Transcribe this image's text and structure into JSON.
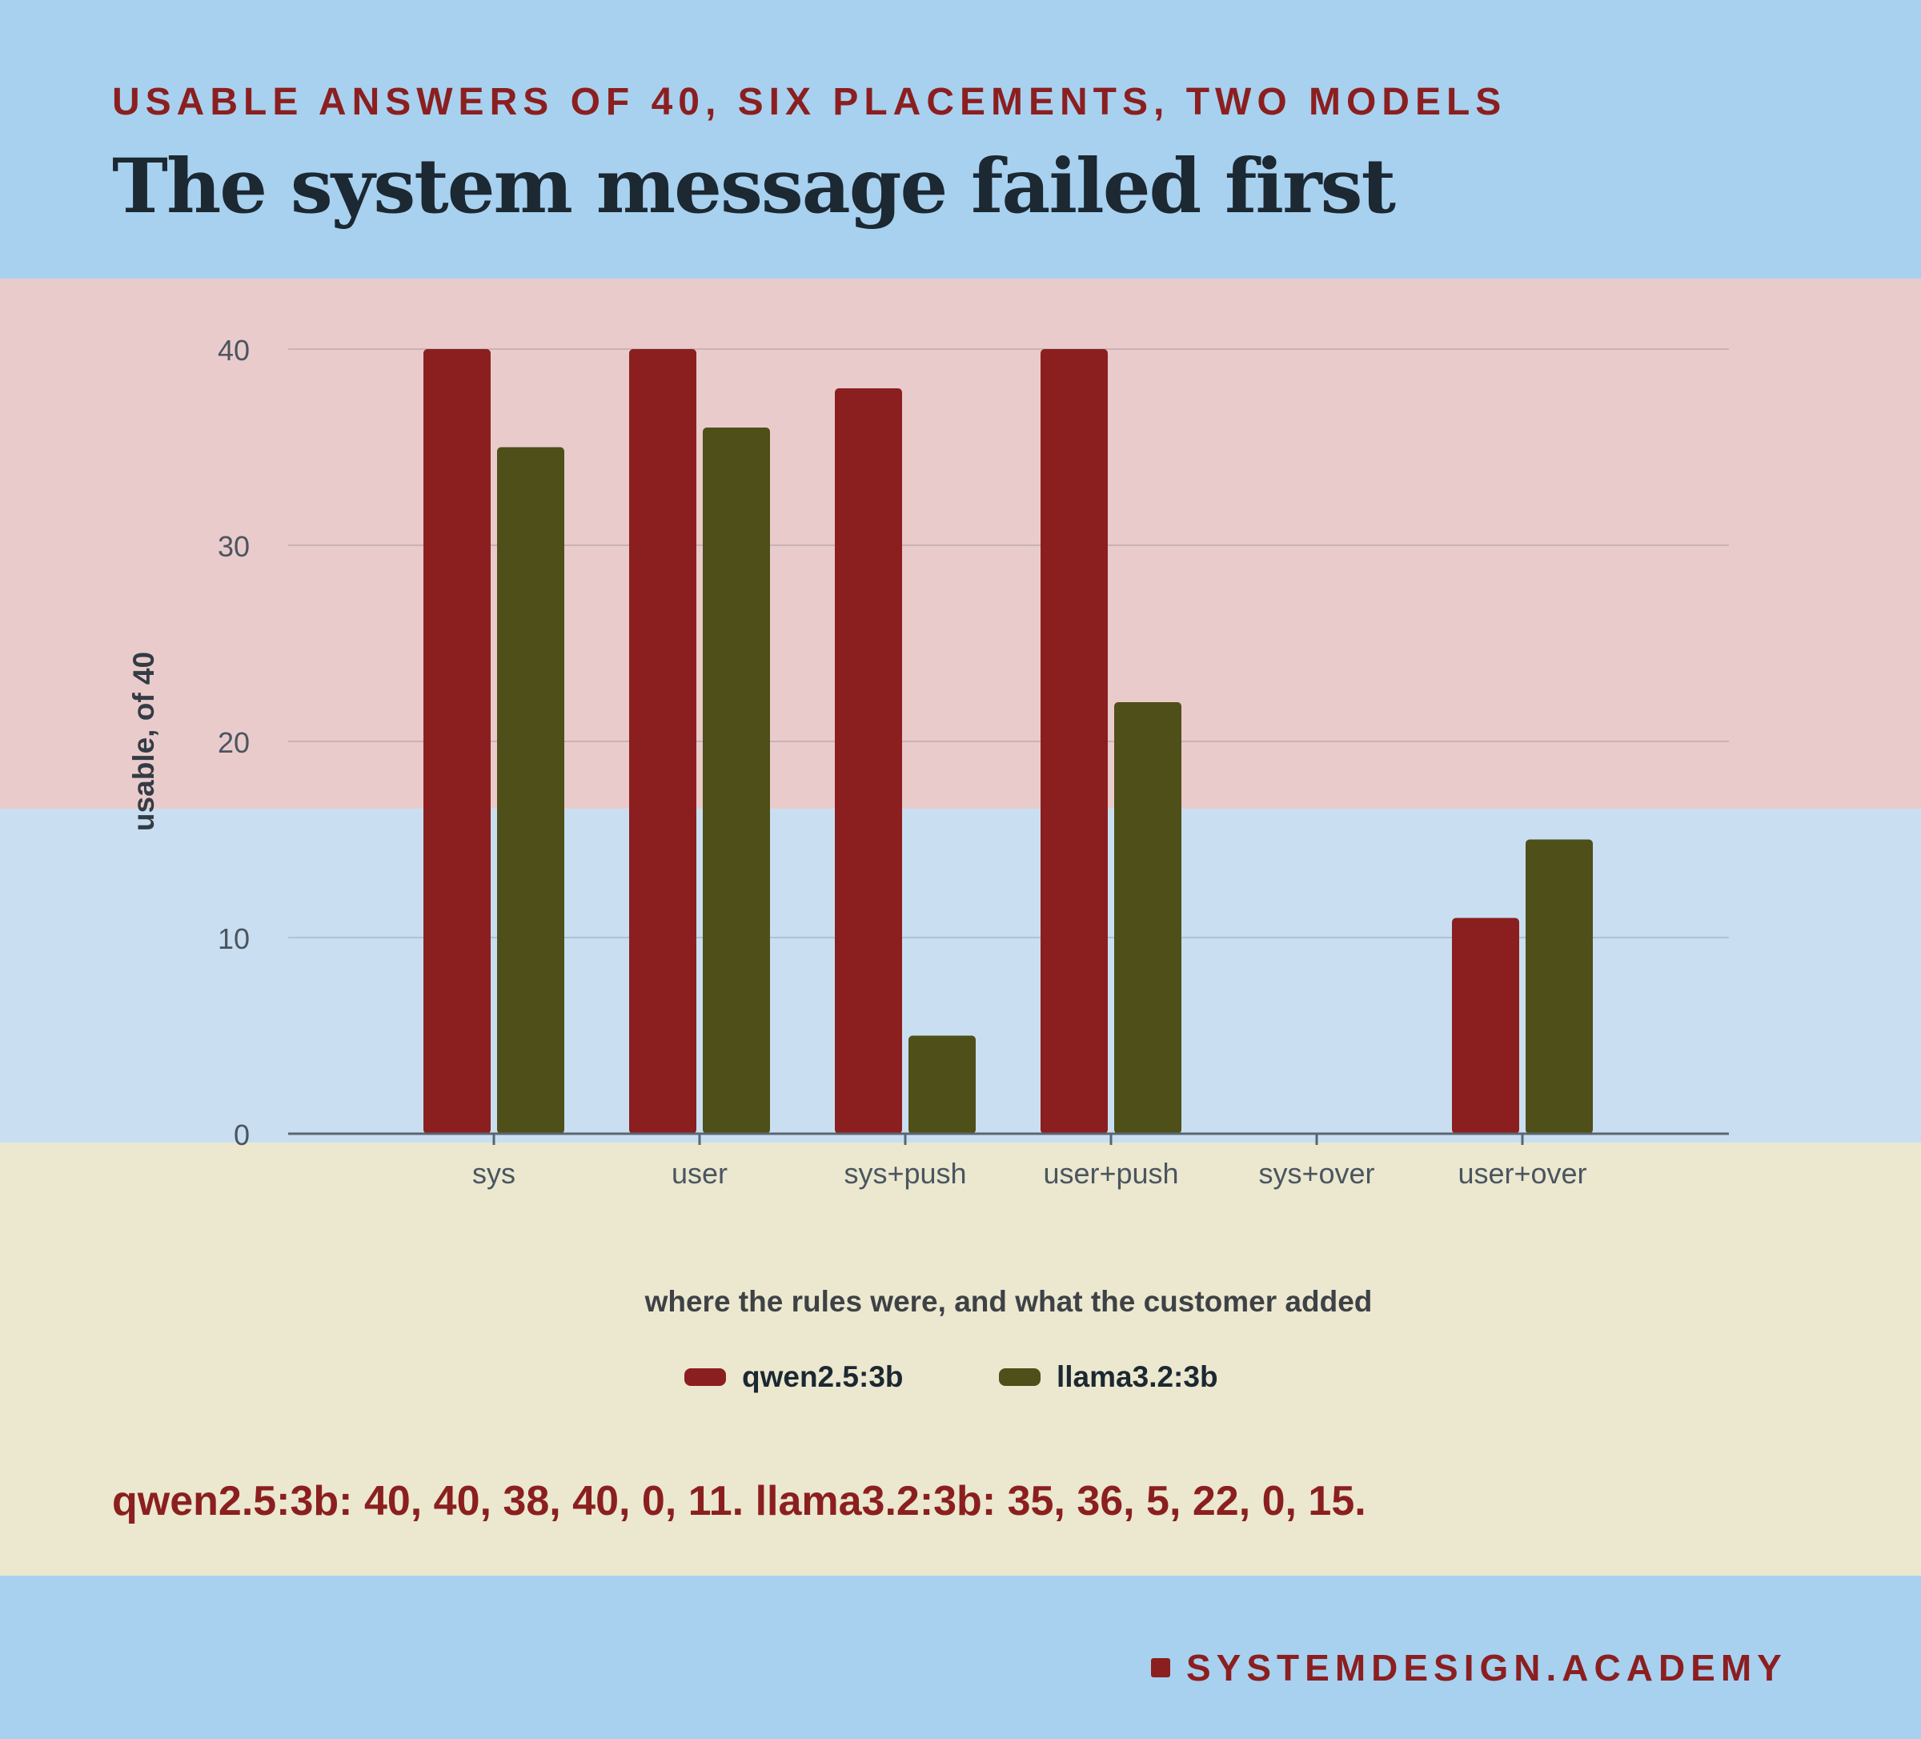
{
  "header": {
    "kicker": "USABLE ANSWERS OF 40, SIX PLACEMENTS, TWO MODELS",
    "title": "The system message failed first"
  },
  "chart_data": {
    "type": "bar",
    "categories": [
      "sys",
      "user",
      "sys+push",
      "user+push",
      "sys+over",
      "user+over"
    ],
    "series": [
      {
        "name": "qwen2.5:3b",
        "color": "#8b1f20",
        "values": [
          40,
          40,
          38,
          40,
          0,
          11
        ]
      },
      {
        "name": "llama3.2:3b",
        "color": "#4f4f19",
        "values": [
          35,
          36,
          5,
          22,
          0,
          15
        ]
      }
    ],
    "xlabel": "where the rules were, and what the customer added",
    "ylabel": "usable, of 40",
    "ylim": [
      0,
      40
    ],
    "yticks": [
      0,
      10,
      20,
      30,
      40
    ],
    "grid": true,
    "legend": "bottom-center",
    "bands": [
      {
        "from": 0,
        "to": 20,
        "color": "#c9dff1"
      },
      {
        "from": 20,
        "to": 40,
        "color": "#eacbcc"
      }
    ]
  },
  "summary": "qwen2.5:3b: 40, 40, 38, 40, 0, 11. llama3.2:3b: 35, 36, 5, 22, 0, 15.",
  "footer": {
    "brand": "SYSTEMDESIGN.ACADEMY"
  },
  "colors": {
    "accent": "#8b1f20",
    "background": "#a8d1f0",
    "lower_panel": "#ebe8cf"
  }
}
